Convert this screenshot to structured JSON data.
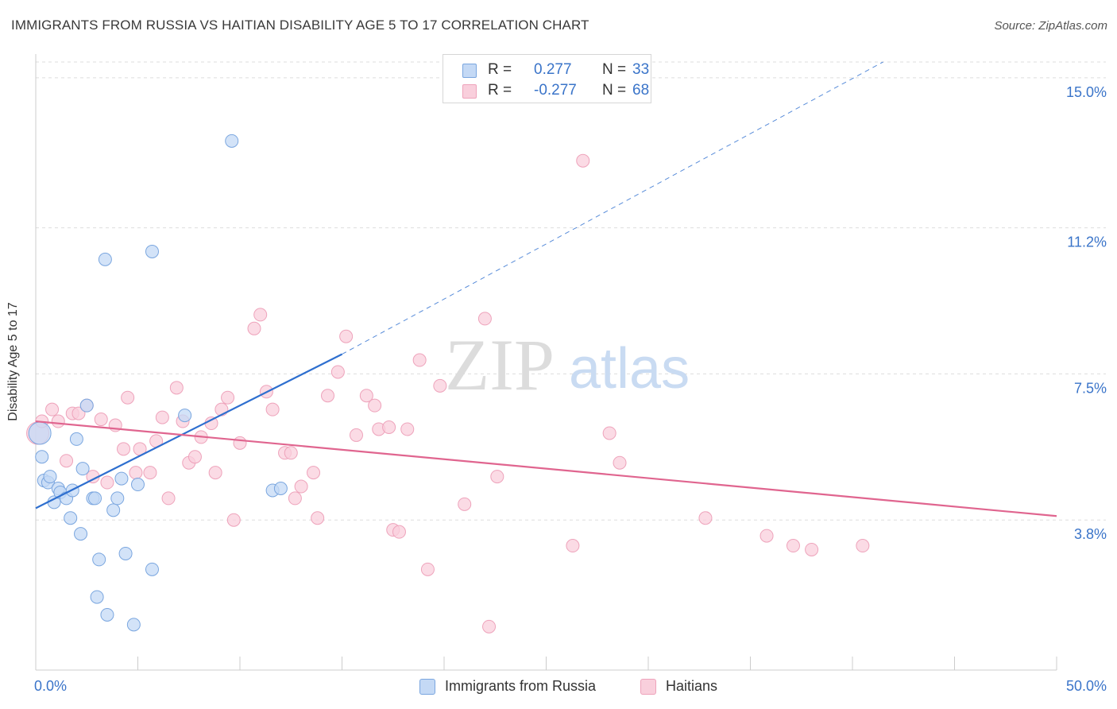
{
  "title": "IMMIGRANTS FROM RUSSIA VS HAITIAN DISABILITY AGE 5 TO 17 CORRELATION CHART",
  "source": "Source: ZipAtlas.com",
  "watermark": {
    "zip": "ZIP",
    "atlas": "atlas"
  },
  "legend_top": {
    "rows": [
      {
        "r_label": "R =",
        "r_value": "0.277",
        "n_label": "N =",
        "n_value": "33"
      },
      {
        "r_label": "R =",
        "r_value": "-0.277",
        "n_label": "N =",
        "n_value": "68"
      }
    ]
  },
  "colors": {
    "blue_fill": "#c4d9f5",
    "blue_stroke": "#7aa6df",
    "blue_line": "#2e6fcf",
    "pink_fill": "#f9cfdc",
    "pink_stroke": "#eea3bb",
    "pink_line": "#e0658f",
    "tick_label": "#3a74c9",
    "grid": "#dddddd"
  },
  "chart_data": {
    "type": "scatter",
    "title": "IMMIGRANTS FROM RUSSIA VS HAITIAN DISABILITY AGE 5 TO 17 CORRELATION CHART",
    "xlabel": "",
    "ylabel": "Disability Age 5 to 17",
    "xlim": [
      0,
      50
    ],
    "ylim": [
      0,
      15.4
    ],
    "x_tick_labels": [
      {
        "value": 0,
        "label": "0.0%"
      },
      {
        "value": 50,
        "label": "50.0%"
      }
    ],
    "y_tick_labels": [
      {
        "value": 3.8,
        "label": "3.8%"
      },
      {
        "value": 7.5,
        "label": "7.5%"
      },
      {
        "value": 11.2,
        "label": "11.2%"
      },
      {
        "value": 15.0,
        "label": "15.0%"
      }
    ],
    "grid": true,
    "legend_placement": "bottom",
    "series": [
      {
        "name": "Immigrants from Russia",
        "color": "#7aa6df",
        "r": 0.277,
        "n": 33,
        "trend": {
          "x": [
            0,
            15
          ],
          "y": [
            4.1,
            8.0
          ],
          "dashed_extension_to": [
            41.5,
            15.4
          ]
        },
        "points": [
          [
            0.2,
            6.0
          ],
          [
            0.3,
            5.4
          ],
          [
            0.4,
            4.8
          ],
          [
            0.6,
            4.75
          ],
          [
            0.7,
            4.9
          ],
          [
            0.9,
            4.25
          ],
          [
            1.1,
            4.6
          ],
          [
            1.2,
            4.5
          ],
          [
            1.5,
            4.35
          ],
          [
            1.8,
            4.55
          ],
          [
            2.0,
            5.85
          ],
          [
            2.2,
            3.45
          ],
          [
            2.3,
            5.1
          ],
          [
            2.5,
            6.7
          ],
          [
            1.7,
            3.85
          ],
          [
            2.8,
            4.35
          ],
          [
            2.9,
            4.35
          ],
          [
            3.0,
            1.85
          ],
          [
            3.1,
            2.8
          ],
          [
            3.4,
            10.4
          ],
          [
            3.5,
            1.4
          ],
          [
            3.8,
            4.05
          ],
          [
            4.0,
            4.35
          ],
          [
            4.2,
            4.85
          ],
          [
            4.4,
            2.95
          ],
          [
            4.8,
            1.15
          ],
          [
            5.0,
            4.7
          ],
          [
            5.7,
            2.55
          ],
          [
            5.7,
            10.6
          ],
          [
            7.3,
            6.45
          ],
          [
            9.6,
            13.4
          ],
          [
            11.6,
            4.55
          ],
          [
            12.0,
            4.6
          ]
        ]
      },
      {
        "name": "Haitians",
        "color": "#eea3bb",
        "r": -0.277,
        "n": 68,
        "trend": {
          "x": [
            0,
            50
          ],
          "y": [
            6.3,
            3.9
          ]
        },
        "points": [
          [
            0.1,
            6.0
          ],
          [
            0.3,
            6.3
          ],
          [
            0.8,
            6.6
          ],
          [
            1.1,
            6.3
          ],
          [
            1.5,
            5.3
          ],
          [
            1.8,
            6.5
          ],
          [
            2.1,
            6.5
          ],
          [
            2.5,
            6.7
          ],
          [
            2.8,
            4.9
          ],
          [
            3.2,
            6.35
          ],
          [
            3.5,
            4.75
          ],
          [
            3.9,
            6.2
          ],
          [
            4.3,
            5.6
          ],
          [
            4.5,
            6.9
          ],
          [
            4.9,
            5.0
          ],
          [
            5.1,
            5.6
          ],
          [
            5.6,
            5.0
          ],
          [
            5.9,
            5.8
          ],
          [
            6.2,
            6.4
          ],
          [
            6.5,
            4.35
          ],
          [
            6.9,
            7.15
          ],
          [
            7.2,
            6.3
          ],
          [
            7.5,
            5.25
          ],
          [
            7.8,
            5.4
          ],
          [
            8.1,
            5.9
          ],
          [
            8.6,
            6.25
          ],
          [
            8.8,
            5.0
          ],
          [
            9.1,
            6.6
          ],
          [
            9.4,
            6.9
          ],
          [
            9.7,
            3.8
          ],
          [
            10.0,
            5.75
          ],
          [
            10.7,
            8.65
          ],
          [
            11.0,
            9.0
          ],
          [
            11.3,
            7.05
          ],
          [
            11.6,
            6.6
          ],
          [
            12.2,
            5.5
          ],
          [
            12.5,
            5.5
          ],
          [
            12.7,
            4.35
          ],
          [
            13.0,
            4.65
          ],
          [
            13.6,
            5.0
          ],
          [
            13.8,
            3.85
          ],
          [
            14.3,
            6.95
          ],
          [
            14.8,
            7.55
          ],
          [
            15.2,
            8.45
          ],
          [
            15.7,
            5.95
          ],
          [
            16.2,
            6.95
          ],
          [
            16.6,
            6.7
          ],
          [
            16.8,
            6.1
          ],
          [
            17.3,
            6.15
          ],
          [
            17.5,
            3.55
          ],
          [
            17.8,
            3.5
          ],
          [
            18.2,
            6.1
          ],
          [
            18.8,
            7.85
          ],
          [
            19.2,
            2.55
          ],
          [
            19.8,
            7.2
          ],
          [
            21.0,
            4.2
          ],
          [
            22.0,
            8.9
          ],
          [
            22.2,
            1.1
          ],
          [
            22.6,
            4.9
          ],
          [
            26.3,
            3.15
          ],
          [
            26.8,
            12.9
          ],
          [
            28.1,
            6.0
          ],
          [
            28.6,
            5.25
          ],
          [
            32.8,
            3.85
          ],
          [
            35.8,
            3.4
          ],
          [
            37.1,
            3.15
          ],
          [
            38.0,
            3.05
          ],
          [
            40.5,
            3.15
          ]
        ]
      }
    ]
  },
  "legend_bottom": {
    "items": [
      {
        "label": "Immigrants from Russia"
      },
      {
        "label": "Haitians"
      }
    ]
  }
}
